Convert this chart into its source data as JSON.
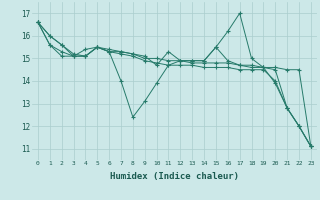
{
  "xlabel": "Humidex (Indice chaleur)",
  "bg_color": "#cce8e8",
  "grid_color": "#aacece",
  "line_color": "#267a6a",
  "xlim": [
    -0.5,
    23.5
  ],
  "ylim": [
    10.5,
    17.5
  ],
  "xticks": [
    0,
    1,
    2,
    3,
    4,
    5,
    6,
    7,
    8,
    9,
    10,
    11,
    12,
    13,
    14,
    15,
    16,
    17,
    18,
    19,
    20,
    21,
    22,
    23
  ],
  "yticks": [
    11,
    12,
    13,
    14,
    15,
    16,
    17
  ],
  "series": [
    [
      16.6,
      16.0,
      15.6,
      15.1,
      15.1,
      15.5,
      15.3,
      14.0,
      12.4,
      13.1,
      13.9,
      14.7,
      14.9,
      14.9,
      14.9,
      15.5,
      16.2,
      17.0,
      15.0,
      14.6,
      13.9,
      12.8,
      12.0,
      11.1
    ],
    [
      16.6,
      16.0,
      15.6,
      15.2,
      15.1,
      15.5,
      15.4,
      15.3,
      15.2,
      15.0,
      15.0,
      14.9,
      14.9,
      14.8,
      14.8,
      14.8,
      14.8,
      14.7,
      14.7,
      14.6,
      14.6,
      14.5,
      14.5,
      11.1
    ],
    [
      16.6,
      15.6,
      15.1,
      15.1,
      15.4,
      15.5,
      15.3,
      15.3,
      15.2,
      15.1,
      14.7,
      15.3,
      14.9,
      14.9,
      14.9,
      15.5,
      14.9,
      14.7,
      14.6,
      14.6,
      14.5,
      12.8,
      12.0,
      11.1
    ],
    [
      16.6,
      15.6,
      15.3,
      15.1,
      15.1,
      15.5,
      15.3,
      15.2,
      15.1,
      14.9,
      14.8,
      14.7,
      14.7,
      14.7,
      14.6,
      14.6,
      14.6,
      14.5,
      14.5,
      14.5,
      14.0,
      12.8,
      12.0,
      11.1
    ]
  ]
}
